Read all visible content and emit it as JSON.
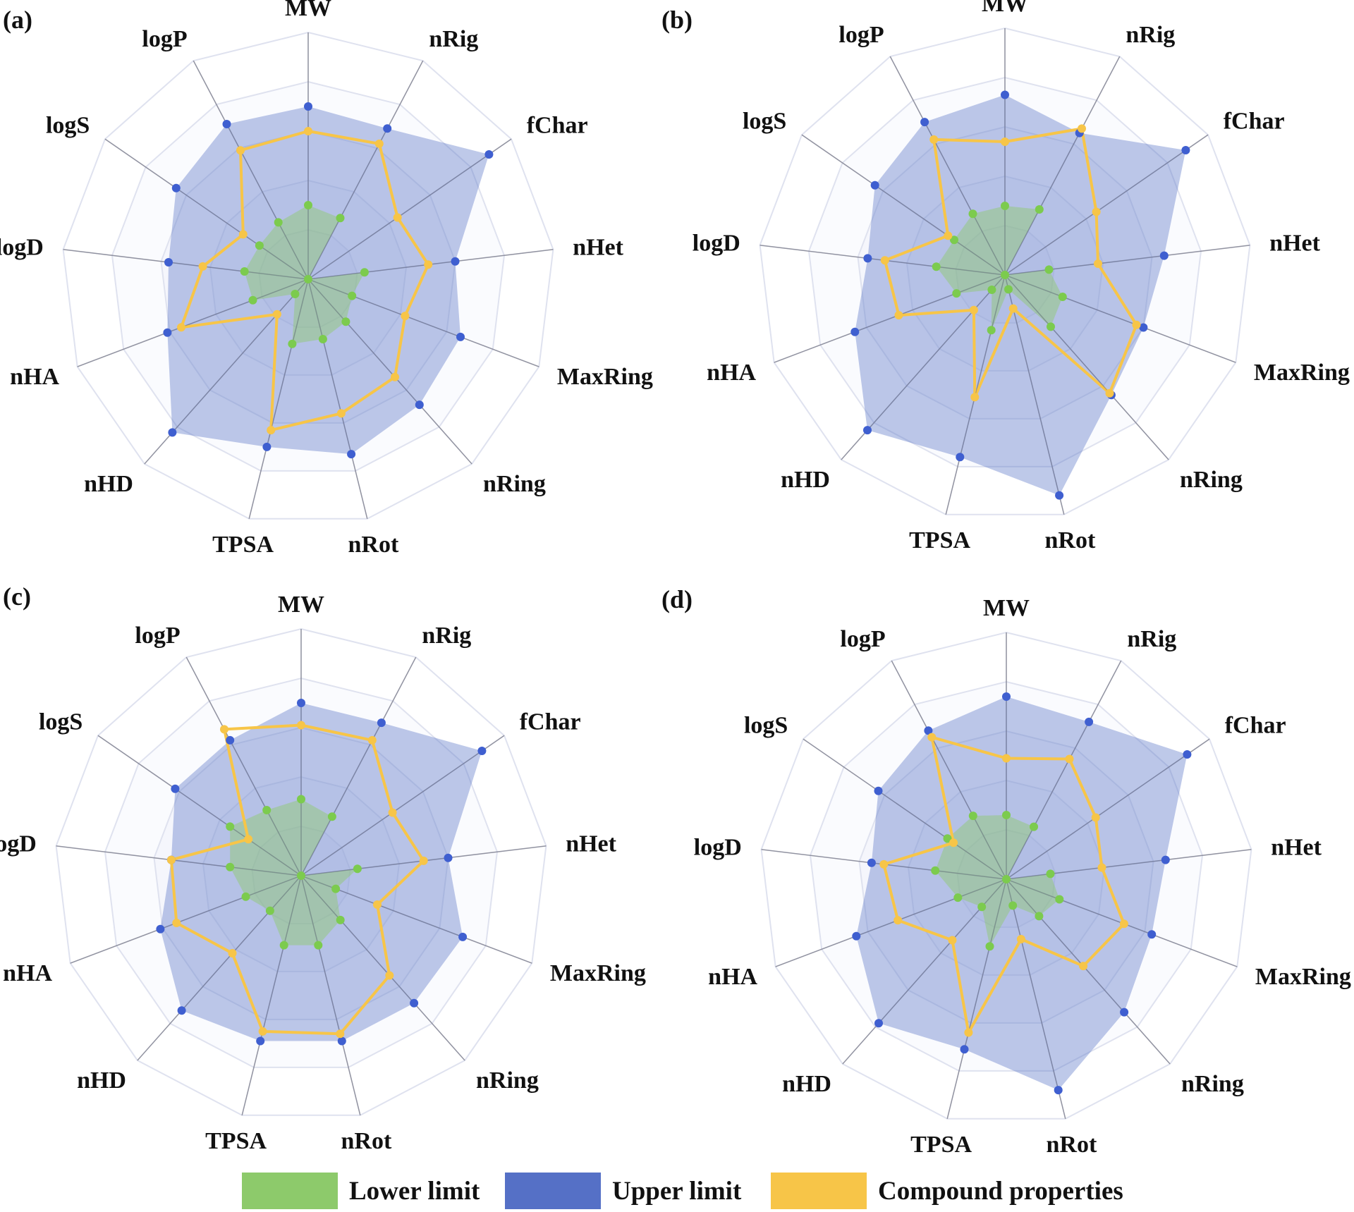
{
  "chart_data": [
    {
      "type": "radar",
      "panel_label": "(a)",
      "categories": [
        "MW",
        "nRig",
        "fChar",
        "nHet",
        "MaxRing",
        "nRing",
        "nRot",
        "TPSA",
        "nHD",
        "nHA",
        "logD",
        "logS",
        "logP"
      ],
      "range": [
        0,
        1
      ],
      "rings": 5,
      "series": [
        {
          "name": "Upper limit",
          "values": [
            0.7,
            0.69,
            0.89,
            0.6,
            0.66,
            0.68,
            0.73,
            0.7,
            0.83,
            0.61,
            0.57,
            0.65,
            0.71
          ]
        },
        {
          "name": "Lower limit",
          "values": [
            0.3,
            0.28,
            0.0,
            0.23,
            0.19,
            0.23,
            0.25,
            0.27,
            0.08,
            0.24,
            0.26,
            0.24,
            0.26
          ]
        },
        {
          "name": "Compound properties",
          "values": [
            0.6,
            0.62,
            0.44,
            0.49,
            0.42,
            0.53,
            0.56,
            0.63,
            0.19,
            0.55,
            0.43,
            0.32,
            0.59
          ]
        }
      ]
    },
    {
      "type": "radar",
      "panel_label": "(b)",
      "categories": [
        "MW",
        "nRig",
        "fChar",
        "nHet",
        "MaxRing",
        "nRing",
        "nRot",
        "TPSA",
        "nHD",
        "nHA",
        "logD",
        "logS",
        "logP"
      ],
      "range": [
        0,
        1
      ],
      "rings": 5,
      "series": [
        {
          "name": "Upper limit",
          "values": [
            0.73,
            0.65,
            0.89,
            0.65,
            0.6,
            0.65,
            0.92,
            0.76,
            0.84,
            0.65,
            0.56,
            0.64,
            0.7
          ]
        },
        {
          "name": "Lower limit",
          "values": [
            0.28,
            0.3,
            0.0,
            0.18,
            0.25,
            0.28,
            0.06,
            0.23,
            0.08,
            0.21,
            0.28,
            0.25,
            0.28
          ]
        },
        {
          "name": "Compound properties",
          "values": [
            0.54,
            0.67,
            0.45,
            0.38,
            0.57,
            0.64,
            0.14,
            0.51,
            0.19,
            0.46,
            0.49,
            0.28,
            0.62
          ]
        }
      ]
    },
    {
      "type": "radar",
      "panel_label": "(c)",
      "categories": [
        "MW",
        "nRig",
        "fChar",
        "nHet",
        "MaxRing",
        "nRing",
        "nRot",
        "TPSA",
        "nHD",
        "nHA",
        "logD",
        "logS",
        "logP"
      ],
      "range": [
        0,
        1
      ],
      "rings": 5,
      "series": [
        {
          "name": "Upper limit",
          "values": [
            0.7,
            0.7,
            0.89,
            0.6,
            0.7,
            0.69,
            0.69,
            0.69,
            0.73,
            0.61,
            0.53,
            0.62,
            0.62
          ]
        },
        {
          "name": "Lower limit",
          "values": [
            0.31,
            0.27,
            0.0,
            0.23,
            0.15,
            0.24,
            0.29,
            0.29,
            0.19,
            0.24,
            0.29,
            0.35,
            0.3
          ]
        },
        {
          "name": "Compound properties",
          "values": [
            0.61,
            0.62,
            0.45,
            0.5,
            0.33,
            0.54,
            0.66,
            0.65,
            0.42,
            0.54,
            0.53,
            0.26,
            0.67
          ]
        }
      ]
    },
    {
      "type": "radar",
      "panel_label": "(d)",
      "categories": [
        "MW",
        "nRig",
        "fChar",
        "nHet",
        "MaxRing",
        "nRing",
        "nRot",
        "TPSA",
        "nHD",
        "nHA",
        "logD",
        "logS",
        "logP"
      ],
      "range": [
        0,
        1
      ],
      "rings": 5,
      "series": [
        {
          "name": "Upper limit",
          "values": [
            0.74,
            0.72,
            0.89,
            0.65,
            0.63,
            0.72,
            0.88,
            0.71,
            0.78,
            0.65,
            0.55,
            0.63,
            0.68
          ]
        },
        {
          "name": "Lower limit",
          "values": [
            0.26,
            0.24,
            0.0,
            0.18,
            0.23,
            0.2,
            0.11,
            0.28,
            0.15,
            0.21,
            0.29,
            0.29,
            0.29
          ]
        },
        {
          "name": "Compound properties",
          "values": [
            0.49,
            0.55,
            0.44,
            0.39,
            0.51,
            0.47,
            0.25,
            0.64,
            0.33,
            0.47,
            0.5,
            0.26,
            0.65
          ]
        }
      ]
    }
  ],
  "legend": {
    "position": "bottom",
    "items": [
      {
        "label": "Lower limit",
        "color": "#8dca6b"
      },
      {
        "label": "Upper limit",
        "color": "#5570c6"
      },
      {
        "label": "Compound properties",
        "color": "#f7c548"
      }
    ]
  },
  "colors": {
    "upper_fill": "#5570c6",
    "upper_point": "#3f5fd0",
    "lower_fill": "#8dca6b",
    "lower_point": "#7ccb4e",
    "compound": "#f7c548",
    "grid": "#dfe2ef",
    "spoke": "#9a9aa5"
  }
}
